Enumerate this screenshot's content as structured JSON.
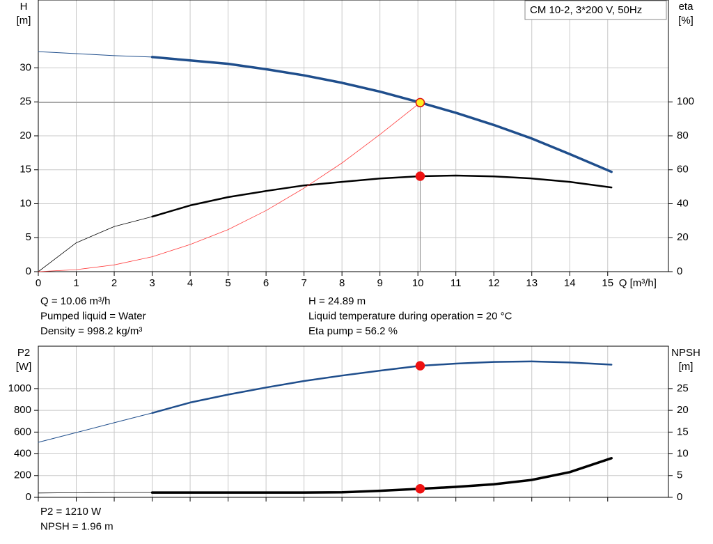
{
  "chart_data": [
    {
      "type": "line",
      "legend_title": "CM 10-2, 3*200 V, 50Hz",
      "ylabel": "H",
      "yunit": "[m]",
      "y2label": "eta",
      "y2unit": "[%]",
      "xlabel": "Q [m³/h]",
      "xlim": [
        0,
        16.6
      ],
      "xticks": [
        0,
        1,
        2,
        3,
        4,
        5,
        6,
        7,
        8,
        9,
        10,
        11,
        12,
        13,
        14,
        15
      ],
      "xtick_labels": true,
      "ylim": [
        0,
        40
      ],
      "yticks": [
        0,
        5,
        10,
        15,
        20,
        25,
        30
      ],
      "y2lim": [
        0,
        160
      ],
      "y2ticks": [
        0,
        20,
        40,
        60,
        80,
        100
      ],
      "grid": true,
      "crosshair": true,
      "series": [
        {
          "style": "line",
          "color": "#1f4e8c",
          "width": 1,
          "x": [
            0,
            1,
            2,
            3
          ],
          "values": [
            32.4,
            32.1,
            31.8,
            31.6
          ]
        },
        {
          "style": "line",
          "color": "#1f4e8c",
          "width": 3.5,
          "x": [
            3,
            4,
            5,
            6,
            7,
            8,
            9,
            10,
            11,
            12,
            13,
            14,
            15.1
          ],
          "values": [
            31.6,
            31.1,
            30.6,
            29.8,
            28.9,
            27.8,
            26.5,
            25.0,
            23.4,
            21.6,
            19.6,
            17.3,
            14.7
          ]
        },
        {
          "style": "line",
          "color": "#000000",
          "width": 0.8,
          "axis": "y2",
          "x": [
            0,
            1,
            2,
            3
          ],
          "values": [
            0,
            17,
            26.6,
            32.4
          ]
        },
        {
          "style": "line",
          "color": "#000000",
          "width": 2.5,
          "axis": "y2",
          "x": [
            3,
            4,
            5,
            6,
            7,
            8,
            9,
            10.06,
            11,
            12,
            13,
            14,
            15.1
          ],
          "values": [
            32.4,
            39,
            43.9,
            47.5,
            50.8,
            52.9,
            54.9,
            56.2,
            56.6,
            56.1,
            54.9,
            52.9,
            49.6
          ]
        },
        {
          "style": "line",
          "color": "#ff3b3b",
          "width": 0.8,
          "x": [
            0,
            1,
            2,
            3,
            4,
            5,
            6,
            7,
            8,
            9,
            10.06
          ],
          "values": [
            0,
            0.3,
            1.0,
            2.2,
            4.0,
            6.2,
            9.0,
            12.3,
            16.0,
            20.2,
            24.89
          ]
        },
        {
          "style": "point",
          "color": "#ffee22",
          "x": [
            10.06
          ],
          "values": [
            24.89
          ]
        },
        {
          "style": "point",
          "color": "#ee1111",
          "axis": "y2",
          "x": [
            10.06
          ],
          "values": [
            56.2
          ]
        }
      ],
      "notes": [
        [
          "Q = 10.06 m³/h",
          "Pumped liquid = Water",
          "Density = 998.2 kg/m³"
        ],
        [
          "H = 24.89 m",
          "Liquid temperature during operation = 20 °C",
          "Eta pump = 56.2 %"
        ]
      ]
    },
    {
      "type": "line",
      "ylabel": "P2",
      "yunit": "[W]",
      "y2label": "NPSH",
      "y2unit": "[m]",
      "xlim": [
        0,
        16.6
      ],
      "xticks": [
        0,
        1,
        2,
        3,
        4,
        5,
        6,
        7,
        8,
        9,
        10,
        11,
        12,
        13,
        14,
        15
      ],
      "xtick_labels": false,
      "ylim": [
        0,
        1390
      ],
      "yticks": [
        0,
        200,
        400,
        600,
        800,
        1000
      ],
      "y2lim": [
        0,
        34.75
      ],
      "y2ticks": [
        0,
        5,
        10,
        15,
        20,
        25
      ],
      "grid": true,
      "crosshair": false,
      "series": [
        {
          "style": "line",
          "color": "#1f4e8c",
          "width": 1,
          "x": [
            0,
            1,
            2,
            3
          ],
          "values": [
            506,
            596,
            686,
            776
          ]
        },
        {
          "style": "line",
          "color": "#1f4e8c",
          "width": 2.5,
          "x": [
            3,
            4,
            5,
            6,
            7,
            8,
            9,
            10.06,
            11,
            12,
            13,
            14,
            15.1
          ],
          "values": [
            776,
            872,
            945,
            1010,
            1070,
            1120,
            1165,
            1210,
            1230,
            1245,
            1250,
            1240,
            1220
          ]
        },
        {
          "style": "line",
          "color": "#000000",
          "width": 0.8,
          "axis": "y2",
          "x": [
            0,
            1,
            2,
            3
          ],
          "values": [
            1.0,
            1.05,
            1.1,
            1.1
          ]
        },
        {
          "style": "line",
          "color": "#000000",
          "width": 3.5,
          "axis": "y2",
          "x": [
            3,
            4,
            5,
            6,
            7,
            8,
            9,
            10.06,
            11,
            12,
            13,
            14,
            15.1
          ],
          "values": [
            1.1,
            1.1,
            1.1,
            1.1,
            1.1,
            1.15,
            1.5,
            1.96,
            2.4,
            3.0,
            4.0,
            5.8,
            9.0
          ]
        },
        {
          "style": "point",
          "color": "#ee1111",
          "x": [
            10.06
          ],
          "values": [
            1210
          ]
        },
        {
          "style": "point",
          "color": "#ee1111",
          "axis": "y2",
          "x": [
            10.06
          ],
          "values": [
            1.96
          ]
        }
      ],
      "notes": [
        [
          "P2 = 1210 W",
          "NPSH = 1.96 m"
        ]
      ]
    }
  ]
}
